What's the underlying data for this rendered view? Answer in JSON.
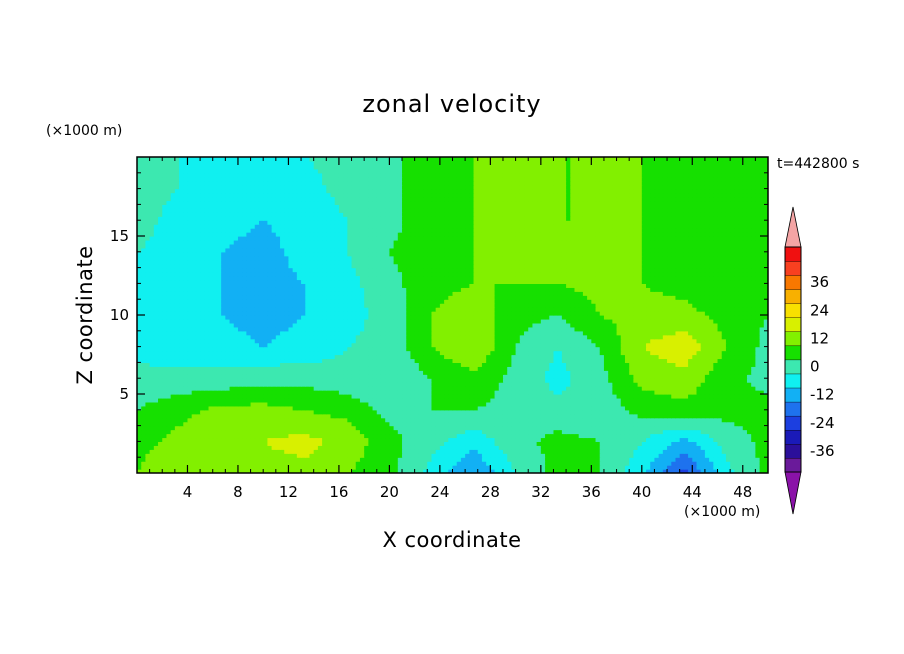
{
  "chart_data": {
    "type": "heatmap",
    "title": "zonal velocity",
    "xlabel": "X coordinate",
    "ylabel": "Z coordinate",
    "x_units": "(×1000 m)",
    "y_units": "(×1000 m)",
    "time_label": "t=442800 s",
    "xlim": [
      0,
      50
    ],
    "ylim": [
      0,
      20
    ],
    "x_ticks": [
      4,
      8,
      12,
      16,
      20,
      24,
      28,
      32,
      36,
      40,
      44,
      48
    ],
    "y_ticks": [
      5,
      10,
      15
    ],
    "colorbar": {
      "ticks": [
        36,
        24,
        12,
        0,
        -12,
        -24,
        -36
      ],
      "levels": [
        -42,
        -36,
        -30,
        -24,
        -18,
        -12,
        -6,
        0,
        6,
        12,
        18,
        24,
        30,
        36,
        42
      ],
      "colors": [
        "#6a1a9a",
        "#2b0f9a",
        "#1a1ab8",
        "#1c3fe0",
        "#1e72ee",
        "#12b0f4",
        "#10f0f0",
        "#3ce8b0",
        "#16e000",
        "#82f000",
        "#d8f000",
        "#f8e000",
        "#f8b000",
        "#f87800",
        "#f84020",
        "#f01010"
      ],
      "under_color": "#8a12a8",
      "over_color": "#f4a4a4",
      "extend": "both"
    },
    "x": [
      0,
      3.33,
      6.67,
      10,
      13.33,
      16.67,
      20,
      23.33,
      26.67,
      30,
      33.33,
      36.67,
      40,
      43.33,
      46.67,
      50
    ],
    "z": [
      0,
      2,
      4,
      6,
      8,
      10,
      12,
      14,
      16,
      18,
      20
    ],
    "values": [
      [
        6,
        12,
        12,
        10,
        10,
        6,
        2,
        -8,
        -18,
        -6,
        2,
        0,
        -10,
        -26,
        -8,
        2
      ],
      [
        4,
        8,
        10,
        12,
        14,
        10,
        2,
        -4,
        -10,
        -2,
        2,
        0,
        -6,
        -14,
        -4,
        2
      ],
      [
        0,
        4,
        8,
        8,
        6,
        4,
        -2,
        0,
        0,
        -2,
        -4,
        -4,
        2,
        4,
        2,
        2
      ],
      [
        -4,
        -4,
        -4,
        -2,
        -2,
        -4,
        -6,
        0,
        4,
        -2,
        -8,
        -2,
        8,
        10,
        2,
        -2
      ],
      [
        -8,
        -10,
        -10,
        -12,
        -10,
        -6,
        -4,
        6,
        12,
        0,
        -6,
        0,
        12,
        16,
        6,
        -2
      ],
      [
        -6,
        -10,
        -12,
        -14,
        -12,
        -8,
        -4,
        6,
        10,
        2,
        0,
        6,
        8,
        8,
        4,
        0
      ],
      [
        -6,
        -10,
        -12,
        -14,
        -12,
        -8,
        -2,
        4,
        6,
        6,
        6,
        8,
        6,
        4,
        2,
        0
      ],
      [
        -6,
        -8,
        -12,
        -14,
        -10,
        -6,
        0,
        4,
        6,
        6,
        8,
        8,
        6,
        4,
        2,
        0
      ],
      [
        -4,
        -8,
        -10,
        -12,
        -10,
        -6,
        -2,
        4,
        6,
        6,
        6,
        6,
        6,
        4,
        2,
        0
      ],
      [
        -4,
        -6,
        -8,
        -10,
        -8,
        -4,
        -2,
        4,
        6,
        10,
        6,
        6,
        6,
        4,
        2,
        0
      ],
      [
        -4,
        -6,
        -6,
        -8,
        -6,
        -4,
        -2,
        4,
        6,
        8,
        6,
        6,
        6,
        4,
        2,
        0
      ]
    ]
  }
}
